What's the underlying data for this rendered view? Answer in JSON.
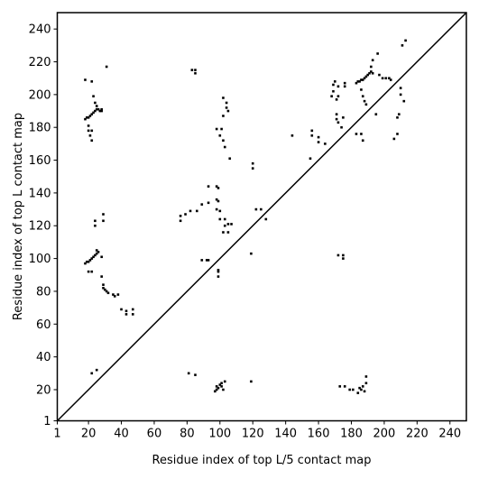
{
  "chart_data": {
    "type": "scatter",
    "xlabel": "Residue index of top L/5 contact map",
    "ylabel": "Residue index of top L contact map",
    "xlim": [
      1,
      250
    ],
    "ylim": [
      1,
      250
    ],
    "xticks": [
      1,
      20,
      40,
      60,
      80,
      100,
      120,
      140,
      160,
      180,
      200,
      220,
      240
    ],
    "yticks": [
      1,
      20,
      40,
      60,
      80,
      100,
      120,
      140,
      160,
      180,
      200,
      220,
      240
    ],
    "color": "#000000",
    "diagonal": true,
    "x": [
      18,
      19,
      20,
      21,
      22,
      23,
      24,
      25,
      26,
      27,
      28,
      28,
      20,
      20,
      21,
      22,
      22,
      23,
      22,
      18,
      24,
      25,
      31,
      18,
      19,
      20,
      21,
      22,
      23,
      24,
      25,
      25,
      26,
      20,
      22,
      24,
      24,
      29,
      29,
      28,
      28,
      29,
      29,
      30,
      31,
      32,
      35,
      36,
      38,
      40,
      43,
      43,
      47,
      47,
      76,
      76,
      79,
      82,
      86,
      89,
      93,
      93,
      98,
      99,
      98,
      99,
      98,
      100,
      100,
      103,
      103,
      105,
      107,
      102,
      105,
      89,
      92,
      93,
      99,
      99,
      99,
      106,
      102,
      100,
      98,
      101,
      102,
      104,
      104,
      105,
      102,
      103,
      83,
      85,
      85,
      119,
      120,
      120,
      122,
      125,
      128,
      144,
      155,
      156,
      156,
      160,
      160,
      164,
      168,
      169,
      169,
      170,
      172,
      172,
      171,
      171,
      171,
      172,
      174,
      175,
      176,
      176,
      172,
      175,
      175,
      183,
      184,
      185,
      186,
      187,
      188,
      189,
      190,
      191,
      192,
      193,
      192,
      193,
      196,
      197,
      199,
      201,
      203,
      204,
      186,
      187,
      188,
      189,
      187,
      186,
      183,
      195,
      206,
      208,
      208,
      209,
      210,
      210,
      211,
      213,
      212,
      22,
      25,
      81,
      85,
      97,
      98,
      98,
      99,
      100,
      101,
      101,
      102,
      103,
      119,
      173,
      176,
      179,
      181,
      184,
      185,
      186,
      187,
      189,
      189,
      188
    ],
    "values": [
      185,
      186,
      186,
      187,
      188,
      189,
      190,
      191,
      191,
      190,
      190,
      191,
      181,
      178,
      175,
      172,
      178,
      199,
      208,
      209,
      195,
      193,
      217,
      97,
      98,
      98,
      99,
      100,
      101,
      102,
      103,
      105,
      104,
      92,
      92,
      120,
      123,
      123,
      127,
      101,
      89,
      84,
      82,
      81,
      80,
      79,
      78,
      77,
      78,
      69,
      68,
      66,
      66,
      69,
      123,
      126,
      127,
      129,
      129,
      133,
      134,
      144,
      144,
      143,
      136,
      135,
      130,
      129,
      124,
      124,
      120,
      121,
      121,
      116,
      116,
      99,
      99,
      99,
      93,
      92,
      89,
      161,
      172,
      175,
      179,
      179,
      198,
      195,
      192,
      190,
      187,
      168,
      215,
      213,
      215,
      103,
      155,
      158,
      130,
      130,
      124,
      175,
      161,
      178,
      175,
      174,
      171,
      170,
      199,
      202,
      206,
      208,
      205,
      199,
      197,
      188,
      185,
      183,
      180,
      186,
      207,
      205,
      102,
      102,
      100,
      207,
      208,
      208,
      209,
      209,
      210,
      211,
      212,
      213,
      214,
      213,
      217,
      221,
      225,
      212,
      210,
      210,
      210,
      209,
      203,
      199,
      196,
      194,
      172,
      176,
      176,
      188,
      173,
      176,
      186,
      188,
      200,
      204,
      230,
      233,
      196,
      30,
      32,
      30,
      29,
      19,
      20,
      22,
      21,
      23,
      24,
      22,
      20,
      25,
      25,
      22,
      22,
      20,
      20,
      18,
      21,
      20,
      22,
      24,
      28,
      19
    ]
  }
}
